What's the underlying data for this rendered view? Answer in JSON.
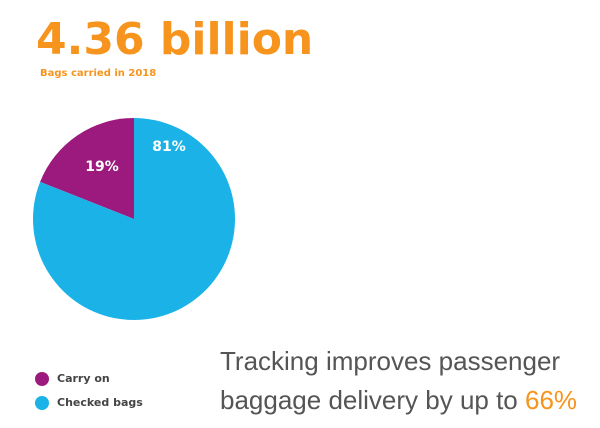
{
  "chart_data": {
    "type": "pie",
    "title": "4.36 billion",
    "subtitle": "Bags carried in 2018",
    "categories": [
      "Carry on",
      "Checked bags"
    ],
    "values": [
      19,
      81
    ],
    "value_labels": [
      "19%",
      "81%"
    ],
    "colors": [
      "#9c1a7d",
      "#1bb2e8"
    ],
    "legend": "bottom-left",
    "annotation": {
      "lines": [
        "Tracking improves passenger",
        "baggage delivery by up to"
      ],
      "highlight": "66%"
    }
  }
}
